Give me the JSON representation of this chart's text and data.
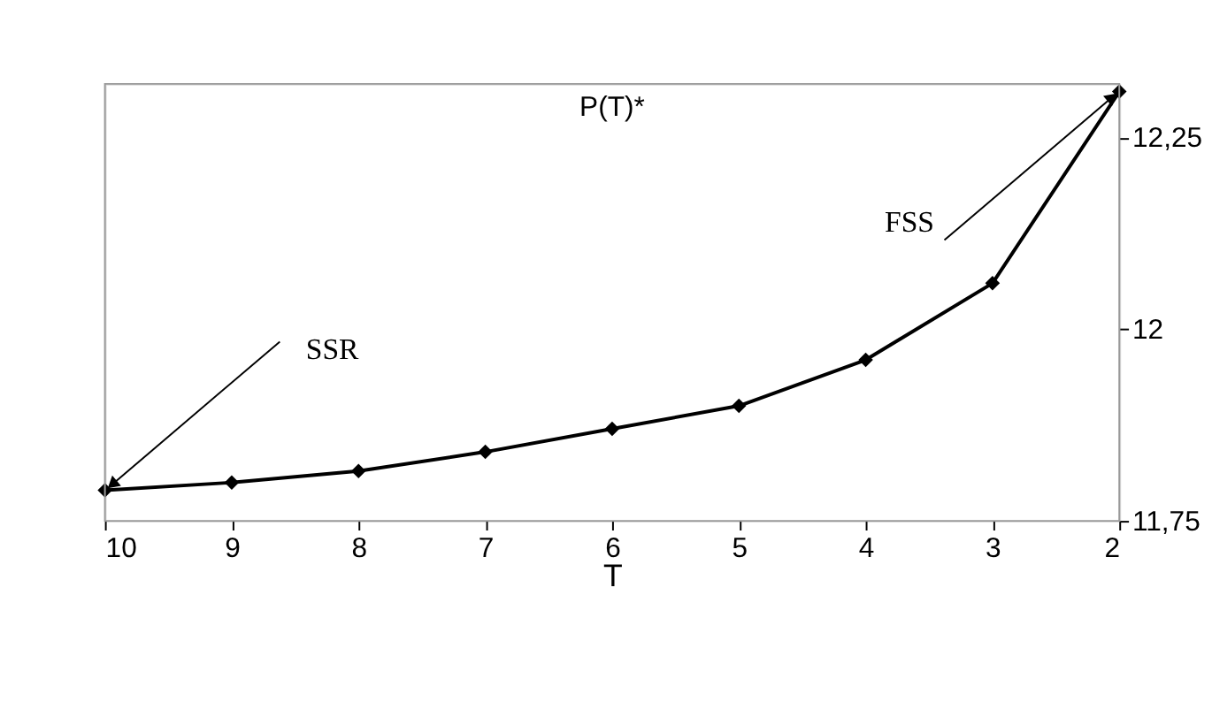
{
  "chart_data": {
    "type": "line",
    "title": "P(T)*",
    "xlabel": "T",
    "x": [
      10,
      9,
      8,
      7,
      6,
      5,
      4,
      3,
      2
    ],
    "series": [
      {
        "color": "#000000",
        "values": [
          11.79,
          11.8,
          11.815,
          11.84,
          11.87,
          11.9,
          11.96,
          12.06,
          12.31
        ]
      }
    ],
    "xlim": [
      10,
      2
    ],
    "xticks": [
      10,
      9,
      8,
      7,
      6,
      5,
      4,
      3,
      2
    ],
    "ylim": [
      11.75,
      12.32
    ],
    "yticks": [
      {
        "value": 11.75,
        "label": "11,75"
      },
      {
        "value": 12,
        "label": "12"
      },
      {
        "value": 12.25,
        "label": "12,25"
      }
    ],
    "annotations": [
      {
        "text": "SSR",
        "x": 10,
        "y": 11.79
      },
      {
        "text": "FSS",
        "x": 2,
        "y": 12.31
      }
    ],
    "marker": "diamond",
    "line_style": "solid",
    "grid": false
  }
}
